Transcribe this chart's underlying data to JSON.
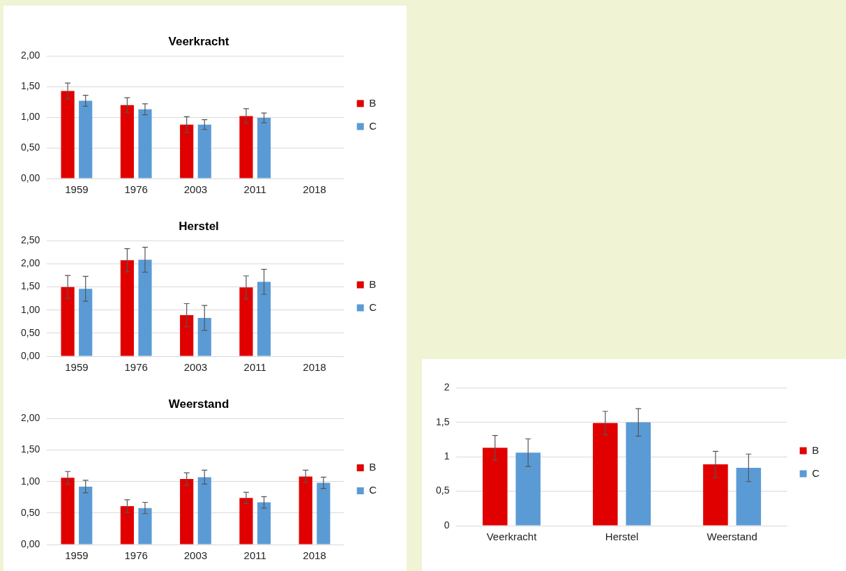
{
  "chart_data": [
    {
      "type": "bar",
      "title": "Veerkracht",
      "categories": [
        "1959",
        "1976",
        "2003",
        "2011",
        "2018"
      ],
      "series": [
        {
          "name": "B",
          "color": "#e00000",
          "values": [
            1.43,
            1.2,
            0.88,
            1.02,
            null
          ],
          "errors": [
            0.13,
            0.12,
            0.13,
            0.12,
            null
          ]
        },
        {
          "name": "C",
          "color": "#5b9bd5",
          "values": [
            1.27,
            1.13,
            0.88,
            0.99,
            null
          ],
          "errors": [
            0.09,
            0.09,
            0.08,
            0.08,
            null
          ]
        }
      ],
      "ylim": [
        0,
        2
      ],
      "yticks": [
        {
          "value": 0,
          "label": "0,00"
        },
        {
          "value": 0.5,
          "label": "0,50"
        },
        {
          "value": 1,
          "label": "1,00"
        },
        {
          "value": 1.5,
          "label": "1,50"
        },
        {
          "value": 2,
          "label": "2,00"
        }
      ],
      "grid": "y",
      "legend": "right"
    },
    {
      "type": "bar",
      "title": "Herstel",
      "categories": [
        "1959",
        "1976",
        "2003",
        "2011",
        "2018"
      ],
      "series": [
        {
          "name": "B",
          "color": "#e00000",
          "values": [
            1.5,
            2.08,
            0.89,
            1.49,
            null
          ],
          "errors": [
            0.25,
            0.25,
            0.25,
            0.25,
            null
          ]
        },
        {
          "name": "C",
          "color": "#5b9bd5",
          "values": [
            1.46,
            2.09,
            0.83,
            1.61,
            null
          ],
          "errors": [
            0.27,
            0.27,
            0.27,
            0.27,
            null
          ]
        }
      ],
      "ylim": [
        0,
        2.5
      ],
      "yticks": [
        {
          "value": 0,
          "label": "0,00"
        },
        {
          "value": 0.5,
          "label": "0,50"
        },
        {
          "value": 1,
          "label": "1,00"
        },
        {
          "value": 1.5,
          "label": "1,50"
        },
        {
          "value": 2,
          "label": "2,00"
        },
        {
          "value": 2.5,
          "label": "2,50"
        }
      ],
      "grid": "y",
      "legend": "right"
    },
    {
      "type": "bar",
      "title": "Weerstand",
      "categories": [
        "1959",
        "1976",
        "2003",
        "2011",
        "2018"
      ],
      "series": [
        {
          "name": "B",
          "color": "#e00000",
          "values": [
            1.06,
            0.61,
            1.04,
            0.74,
            1.08
          ],
          "errors": [
            0.1,
            0.1,
            0.1,
            0.09,
            0.1
          ]
        },
        {
          "name": "C",
          "color": "#5b9bd5",
          "values": [
            0.92,
            0.58,
            1.07,
            0.67,
            0.98
          ],
          "errors": [
            0.1,
            0.09,
            0.11,
            0.09,
            0.09
          ]
        }
      ],
      "ylim": [
        0,
        2
      ],
      "yticks": [
        {
          "value": 0,
          "label": "0,00"
        },
        {
          "value": 0.5,
          "label": "0,50"
        },
        {
          "value": 1,
          "label": "1,00"
        },
        {
          "value": 1.5,
          "label": "1,50"
        },
        {
          "value": 2,
          "label": "2,00"
        }
      ],
      "grid": "y",
      "legend": "right"
    },
    {
      "type": "bar",
      "categories": [
        "Veerkracht",
        "Herstel",
        "Weerstand"
      ],
      "series": [
        {
          "name": "B",
          "color": "#e00000",
          "values": [
            1.13,
            1.49,
            0.89
          ],
          "errors": [
            0.18,
            0.17,
            0.19
          ]
        },
        {
          "name": "C",
          "color": "#5b9bd5",
          "values": [
            1.06,
            1.5,
            0.84
          ],
          "errors": [
            0.2,
            0.2,
            0.2
          ]
        }
      ],
      "ylim": [
        0,
        2
      ],
      "yticks": [
        0,
        {
          "value": 0.5,
          "label": "0,5"
        },
        1,
        {
          "value": 1.5,
          "label": "1,5"
        },
        2
      ],
      "grid": "y",
      "legend": "right"
    }
  ]
}
